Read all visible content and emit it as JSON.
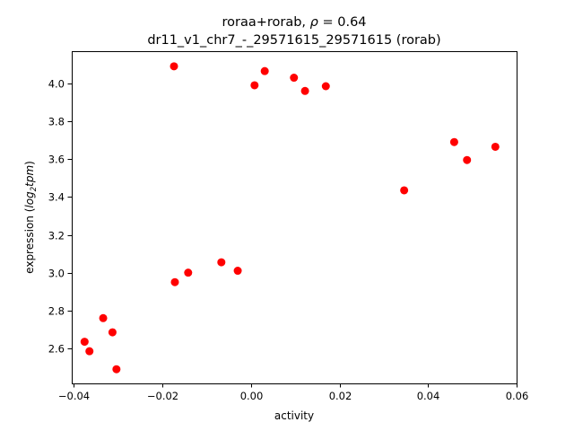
{
  "chart_data": {
    "type": "scatter",
    "title_line1_prefix": "roraa+rorab, ",
    "title_rho_symbol": "ρ",
    "title_rho_value": " = 0.64",
    "title_line2": "dr11_v1_chr7_-_29571615_29571615 (rorab)",
    "xlabel": "activity",
    "ylabel_prefix": "expression (",
    "ylabel_log": "log",
    "ylabel_sub": "2",
    "ylabel_tpm": "tpm",
    "ylabel_suffix": ")",
    "xlim": [
      -0.0405,
      0.06
    ],
    "ylim": [
      2.415,
      4.17
    ],
    "xticks": [
      -0.04,
      -0.02,
      0.0,
      0.02,
      0.04,
      0.06
    ],
    "xtick_labels": [
      "−0.04",
      "−0.02",
      "0.00",
      "0.02",
      "0.04",
      "0.06"
    ],
    "yticks": [
      2.6,
      2.8,
      3.0,
      3.2,
      3.4,
      3.6,
      3.8,
      4.0
    ],
    "ytick_labels": [
      "2.6",
      "2.8",
      "3.0",
      "3.2",
      "3.4",
      "3.6",
      "3.8",
      "4.0"
    ],
    "marker_color": "#ff0000",
    "grid": false,
    "legend": false,
    "series": [
      {
        "points": [
          {
            "x": -0.0376,
            "y": 2.635
          },
          {
            "x": -0.0365,
            "y": 2.585
          },
          {
            "x": -0.0334,
            "y": 2.76
          },
          {
            "x": -0.0313,
            "y": 2.685
          },
          {
            "x": -0.0304,
            "y": 2.49
          },
          {
            "x": -0.0172,
            "y": 2.95
          },
          {
            "x": -0.0142,
            "y": 3.0
          },
          {
            "x": -0.0067,
            "y": 3.055
          },
          {
            "x": -0.003,
            "y": 3.01
          },
          {
            "x": -0.0174,
            "y": 4.09
          },
          {
            "x": 0.0008,
            "y": 3.99
          },
          {
            "x": 0.0031,
            "y": 4.065
          },
          {
            "x": 0.0097,
            "y": 4.03
          },
          {
            "x": 0.0122,
            "y": 3.96
          },
          {
            "x": 0.0169,
            "y": 3.985
          },
          {
            "x": 0.0346,
            "y": 3.435
          },
          {
            "x": 0.0459,
            "y": 3.69
          },
          {
            "x": 0.0488,
            "y": 3.595
          },
          {
            "x": 0.0552,
            "y": 3.665
          }
        ]
      }
    ]
  }
}
